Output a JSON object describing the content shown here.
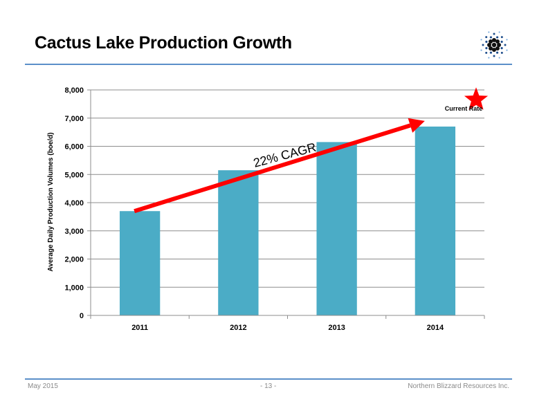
{
  "slide": {
    "title": "Cactus Lake Production Growth"
  },
  "footer": {
    "date": "May 2015",
    "page": "- 13 -",
    "company": "Northern Blizzard Resources Inc."
  },
  "colors": {
    "bar": "#4bacc6",
    "arrow": "#ff0000",
    "star": "#ff0000",
    "rule": "#5b8fc9",
    "logo": "#1f4e8c"
  },
  "icons": [
    "snowflake-logo-icon",
    "star-icon",
    "arrow-icon"
  ],
  "chart_data": {
    "type": "bar",
    "categories": [
      "2011",
      "2012",
      "2013",
      "2014"
    ],
    "values": [
      3700,
      5150,
      6150,
      6700
    ],
    "xlabel": "",
    "ylabel": "Average Daily Production Volumes (boe/d)",
    "ylim": [
      0,
      8000
    ],
    "yticks": [
      0,
      1000,
      2000,
      3000,
      4000,
      5000,
      6000,
      7000,
      8000
    ],
    "ytick_labels": [
      "0",
      "1,000",
      "2,000",
      "3,000",
      "4,000",
      "5,000",
      "6,000",
      "7,000",
      "8,000"
    ],
    "grid": true,
    "annotations": {
      "growth_label": "22% CAGR",
      "growth_arrow": {
        "from": [
          "2011",
          3700
        ],
        "to": [
          "2014",
          6900
        ]
      },
      "marker_label": "Current Rate",
      "marker_value": 7800
    }
  }
}
